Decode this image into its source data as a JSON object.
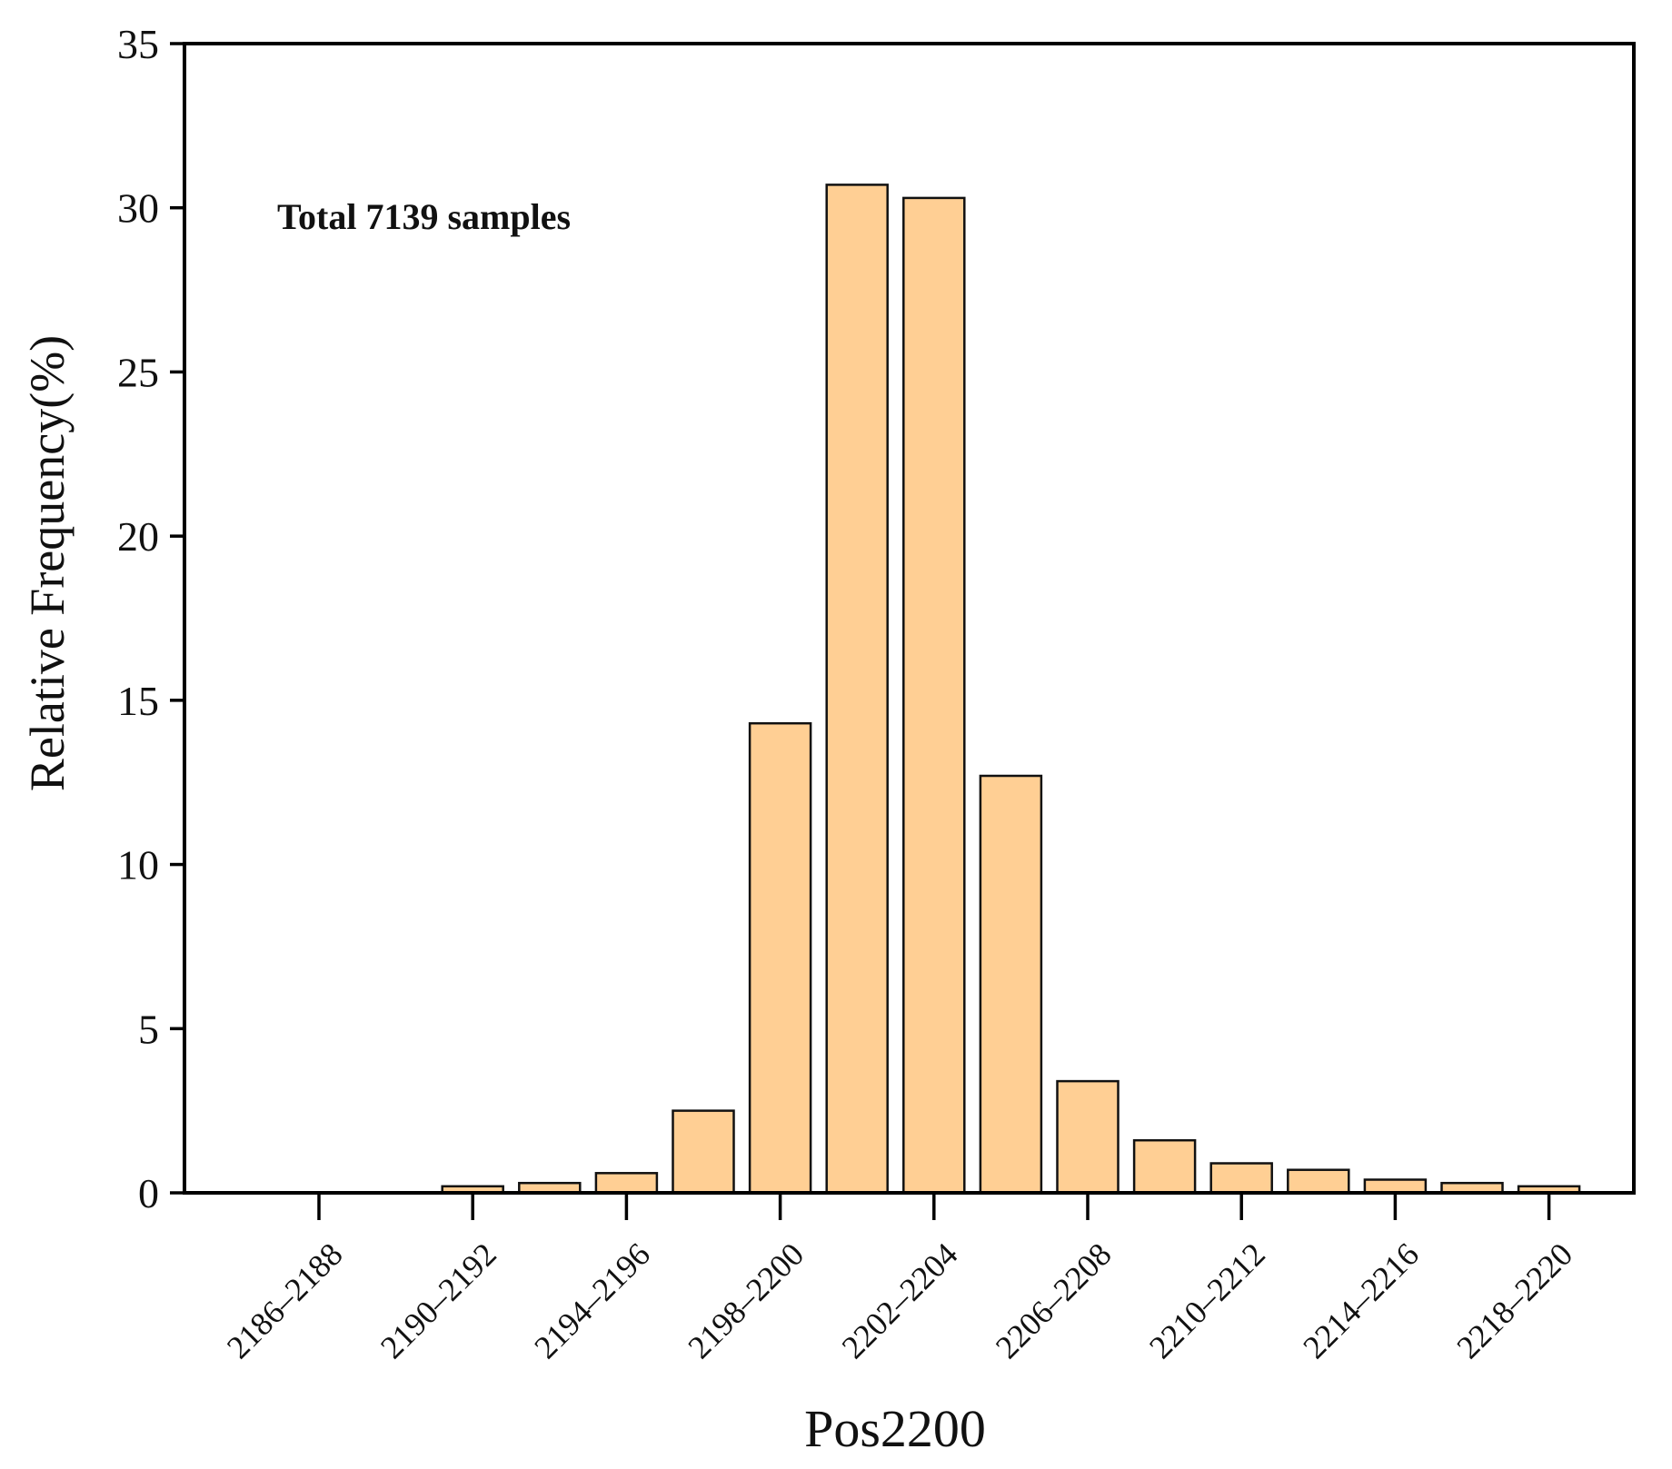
{
  "chart_data": {
    "type": "bar",
    "title": "",
    "xlabel": "Pos2200",
    "ylabel": "Relative Frequency(%)",
    "annotation": "Total 7139 samples",
    "ylim": [
      0,
      35
    ],
    "yticks": [
      0,
      5,
      10,
      15,
      20,
      25,
      30,
      35
    ],
    "xtick_labels": [
      "2186–2188",
      "2190–2192",
      "2194–2196",
      "2198–2200",
      "2202–2204",
      "2206–2208",
      "2210–2212",
      "2214–2216",
      "2218–2220"
    ],
    "categories": [
      "2186–2188",
      "2188–2190",
      "2190–2192",
      "2192–2194",
      "2194–2196",
      "2196–2198",
      "2198–2200",
      "2200–2202",
      "2202–2204",
      "2204–2206",
      "2206–2208",
      "2208–2210",
      "2210–2212",
      "2212–2214",
      "2214–2216",
      "2216–2218",
      "2218–2220"
    ],
    "values": [
      0,
      0,
      0.2,
      0.3,
      0.6,
      2.5,
      14.3,
      30.7,
      30.3,
      12.7,
      3.4,
      1.6,
      0.9,
      0.7,
      0.4,
      0.3,
      0.2
    ],
    "bar_color": "#FFCF94",
    "edge_color": "#111111"
  }
}
